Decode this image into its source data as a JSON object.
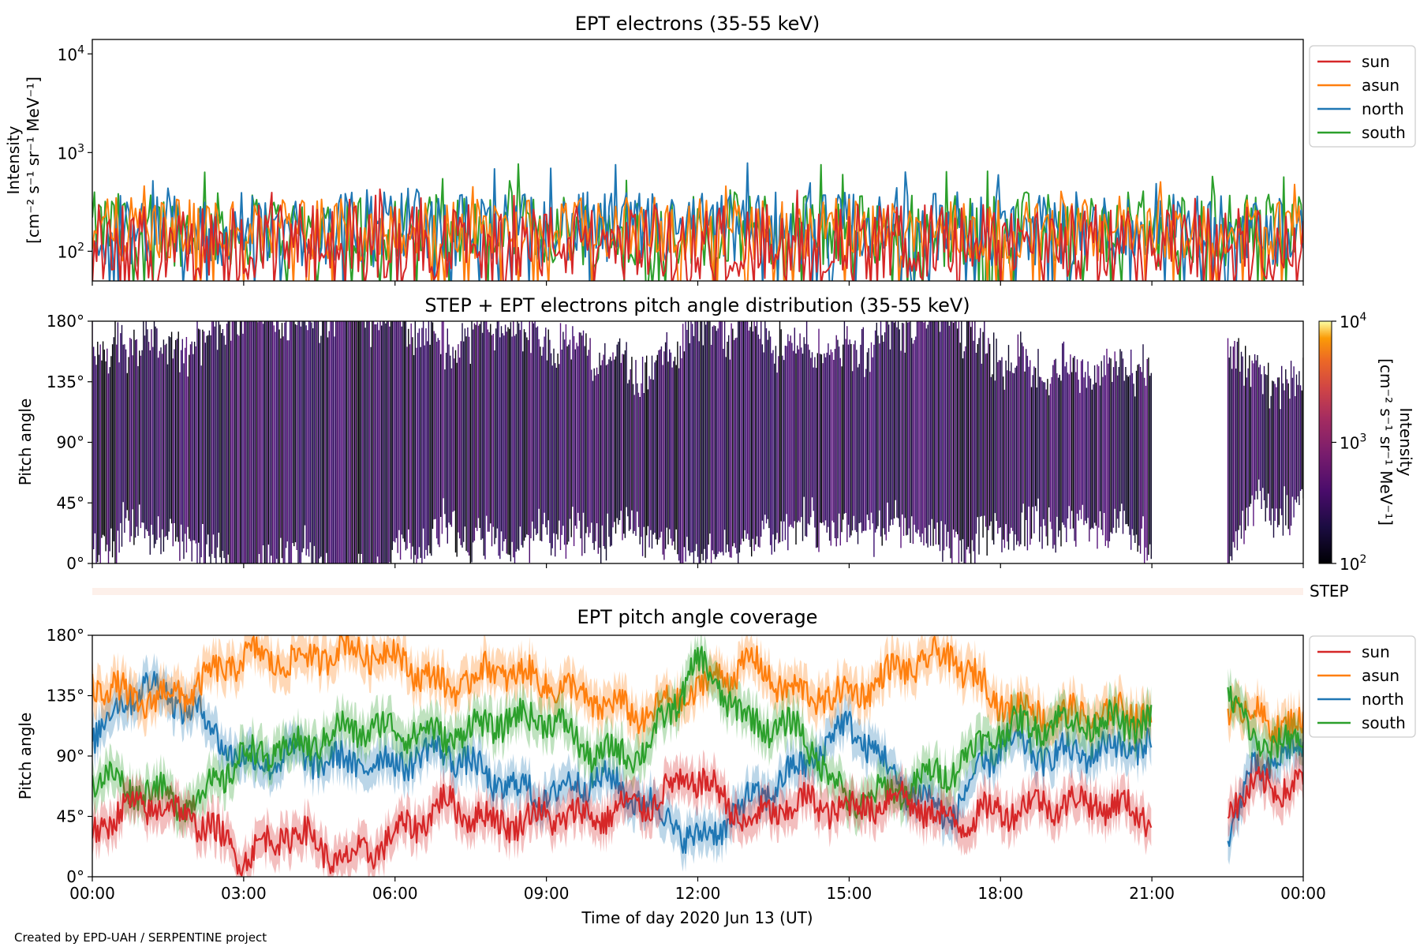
{
  "footer": {
    "credit": "Created by EPD-UAH / SERPENTINE project"
  },
  "colors": {
    "sun": "#d62728",
    "asun": "#ff7f0e",
    "north": "#1f77b4",
    "south": "#2ca02c"
  },
  "chart_data": [
    {
      "type": "line",
      "title": "EPT electrons (35-55 keV)",
      "ylabel_line1": "Intensity",
      "ylabel_line2": "[cm⁻² s⁻¹ sr⁻¹ MeV⁻¹]",
      "yscale": "log",
      "ylim": [
        50,
        14000
      ],
      "yticks": [
        {
          "value": 100,
          "base": "10",
          "exp": "2"
        },
        {
          "value": 1000,
          "base": "10",
          "exp": "3"
        },
        {
          "value": 10000,
          "base": "10",
          "exp": "4"
        }
      ],
      "xlim": [
        "2020-06-13 00:00",
        "2020-06-14 00:00"
      ],
      "legend_position": "outside-right",
      "series": [
        {
          "name": "sun",
          "color": "#d62728",
          "typical_range": [
            50,
            300
          ],
          "peak": 450
        },
        {
          "name": "asun",
          "color": "#ff7f0e",
          "typical_range": [
            80,
            350
          ],
          "peak": 560
        },
        {
          "name": "north",
          "color": "#1f77b4",
          "typical_range": [
            70,
            400
          ],
          "peak": 800
        },
        {
          "name": "south",
          "color": "#2ca02c",
          "typical_range": [
            70,
            400
          ],
          "peak": 780
        }
      ]
    },
    {
      "type": "heatmap",
      "title": "STEP + EPT electrons pitch angle distribution (35-55 keV)",
      "ylabel": "Pitch angle",
      "ylim": [
        0,
        180
      ],
      "yticks": [
        "0°",
        "45°",
        "90°",
        "135°",
        "180°"
      ],
      "colorbar": {
        "label_line1": "Intensity",
        "label_line2": "[cm⁻² s⁻¹ sr⁻¹ MeV⁻¹]",
        "scale": "log",
        "range": [
          100,
          10000
        ],
        "ticks": [
          {
            "base": "10",
            "exp": "2"
          },
          {
            "base": "10",
            "exp": "3"
          },
          {
            "base": "10",
            "exp": "4"
          }
        ]
      },
      "data_gaps": [
        [
          "21:00",
          "22:30"
        ]
      ]
    },
    {
      "type": "bar",
      "label": "STEP"
    },
    {
      "type": "line",
      "title": "EPT pitch angle coverage",
      "ylabel": "Pitch angle",
      "xlabel": "Time of day 2020 Jun 13 (UT)",
      "ylim": [
        0,
        180
      ],
      "yticks": [
        "0°",
        "45°",
        "90°",
        "135°",
        "180°"
      ],
      "xticks": [
        "00:00",
        "03:00",
        "06:00",
        "09:00",
        "12:00",
        "15:00",
        "18:00",
        "21:00",
        "00:00"
      ],
      "legend_position": "outside-right",
      "data_gaps": [
        [
          "21:00",
          "22:30"
        ]
      ],
      "series": [
        {
          "name": "sun",
          "color": "#d62728",
          "hours": [
            0,
            1,
            2,
            3,
            4,
            5,
            6,
            7,
            8,
            9,
            10,
            11,
            12,
            13,
            14,
            15,
            16,
            17,
            18,
            19,
            20,
            21,
            22.5,
            23,
            24
          ],
          "values": [
            35,
            55,
            45,
            15,
            35,
            10,
            30,
            55,
            40,
            45,
            45,
            55,
            75,
            40,
            55,
            50,
            60,
            40,
            50,
            55,
            55,
            45,
            55,
            65,
            70
          ]
        },
        {
          "name": "asun",
          "color": "#ff7f0e",
          "hours": [
            0,
            1,
            2,
            3,
            4,
            5,
            6,
            7,
            8,
            9,
            10,
            11,
            12,
            13,
            14,
            15,
            16,
            17,
            18,
            19,
            20,
            21,
            22.5,
            23,
            24
          ],
          "values": [
            145,
            130,
            140,
            165,
            160,
            170,
            165,
            140,
            155,
            145,
            130,
            120,
            140,
            160,
            135,
            135,
            155,
            165,
            130,
            120,
            120,
            125,
            130,
            120,
            110
          ]
        },
        {
          "name": "north",
          "color": "#1f77b4",
          "hours": [
            0,
            1,
            2,
            3,
            4,
            5,
            6,
            7,
            8,
            9,
            10,
            11,
            12,
            13,
            14,
            15,
            16,
            17,
            18,
            19,
            20,
            21,
            22.5,
            23,
            24
          ],
          "values": [
            105,
            145,
            125,
            85,
            90,
            85,
            85,
            95,
            70,
            60,
            75,
            55,
            25,
            55,
            80,
            115,
            70,
            45,
            100,
            90,
            95,
            100,
            25,
            80,
            95
          ]
        },
        {
          "name": "south",
          "color": "#2ca02c",
          "hours": [
            0,
            1,
            2,
            3,
            4,
            5,
            6,
            7,
            8,
            9,
            10,
            11,
            12,
            13,
            14,
            15,
            16,
            17,
            18,
            19,
            20,
            21,
            22.5,
            23,
            24
          ],
          "values": [
            75,
            65,
            55,
            90,
            95,
            110,
            110,
            105,
            115,
            120,
            90,
            95,
            160,
            115,
            110,
            55,
            65,
            80,
            110,
            115,
            115,
            115,
            140,
            100,
            100
          ]
        }
      ]
    }
  ]
}
